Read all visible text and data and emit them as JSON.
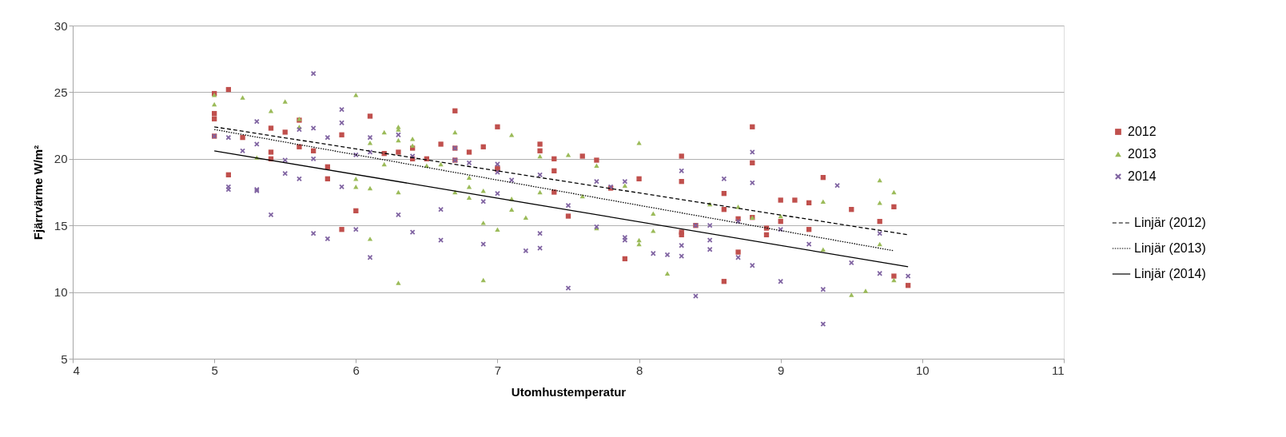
{
  "chart_data": {
    "type": "scatter",
    "xlabel": "Utomhustemperatur",
    "ylabel": "Fjärrvärme W/m²",
    "xlim": [
      4,
      11
    ],
    "xticks": [
      4,
      5,
      6,
      7,
      8,
      9,
      10,
      11
    ],
    "ylim": [
      5,
      30
    ],
    "yticks": [
      5,
      10,
      15,
      20,
      25,
      30
    ],
    "grid": "y",
    "legend": "right",
    "series": [
      {
        "name": "2012",
        "color": "#c0504d",
        "marker": "square",
        "x": [
          5.0,
          5.0,
          5.0,
          5.0,
          5.1,
          5.1,
          5.2,
          5.4,
          5.4,
          5.4,
          5.5,
          5.6,
          5.6,
          5.7,
          5.8,
          5.8,
          5.9,
          5.9,
          6.0,
          6.1,
          6.2,
          6.3,
          6.4,
          6.4,
          6.5,
          6.6,
          6.7,
          6.7,
          6.7,
          6.8,
          6.9,
          7.0,
          7.0,
          7.0,
          7.3,
          7.3,
          7.4,
          7.4,
          7.4,
          7.5,
          7.6,
          7.7,
          7.8,
          7.9,
          8.0,
          8.3,
          8.3,
          8.3,
          8.3,
          8.4,
          8.6,
          8.6,
          8.6,
          8.7,
          8.7,
          8.8,
          8.8,
          8.8,
          8.9,
          8.9,
          9.0,
          9.0,
          9.1,
          9.2,
          9.2,
          9.3,
          9.5,
          9.7,
          9.8,
          9.8,
          9.9
        ],
        "values": [
          24.9,
          23.4,
          23.0,
          21.7,
          25.2,
          18.8,
          21.6,
          22.3,
          20.5,
          20.0,
          22.0,
          22.9,
          20.9,
          20.6,
          19.4,
          18.5,
          21.8,
          14.7,
          16.1,
          23.2,
          20.4,
          20.5,
          20.8,
          20.0,
          20.0,
          21.1,
          23.6,
          20.8,
          19.9,
          20.5,
          20.9,
          22.4,
          19.3,
          19.2,
          21.1,
          20.6,
          20.0,
          19.1,
          17.5,
          15.7,
          20.2,
          19.9,
          17.8,
          12.5,
          18.5,
          20.2,
          18.3,
          14.5,
          14.3,
          15.0,
          17.4,
          16.2,
          10.8,
          15.5,
          13.0,
          22.4,
          19.7,
          15.6,
          14.8,
          14.3,
          16.9,
          15.3,
          16.9,
          16.7,
          14.7,
          18.6,
          16.2,
          15.3,
          16.4,
          11.2,
          10.5
        ]
      },
      {
        "name": "2013",
        "color": "#9bbb59",
        "marker": "triangle",
        "x": [
          5.0,
          5.0,
          5.2,
          5.3,
          5.4,
          5.5,
          5.6,
          5.6,
          6.0,
          6.0,
          6.0,
          6.1,
          6.1,
          6.1,
          6.2,
          6.2,
          6.3,
          6.3,
          6.3,
          6.3,
          6.3,
          6.4,
          6.4,
          6.5,
          6.6,
          6.7,
          6.7,
          6.8,
          6.8,
          6.8,
          6.9,
          6.9,
          6.9,
          7.0,
          7.1,
          7.1,
          7.1,
          7.2,
          7.3,
          7.3,
          7.5,
          7.6,
          7.7,
          7.7,
          7.9,
          8.0,
          8.0,
          8.0,
          8.1,
          8.1,
          8.2,
          8.5,
          8.7,
          8.8,
          9.0,
          9.3,
          9.3,
          9.5,
          9.6,
          9.7,
          9.7,
          9.7,
          9.8,
          9.8
        ],
        "values": [
          24.8,
          24.1,
          24.6,
          20.1,
          23.6,
          24.3,
          23.0,
          22.4,
          24.8,
          18.5,
          17.9,
          21.2,
          17.8,
          14.0,
          22.0,
          19.6,
          22.4,
          22.2,
          21.4,
          17.5,
          10.7,
          21.5,
          21.0,
          19.5,
          19.6,
          22.0,
          17.5,
          18.6,
          17.9,
          17.1,
          17.6,
          15.2,
          10.9,
          14.7,
          21.8,
          17.0,
          16.2,
          15.6,
          20.2,
          17.5,
          20.3,
          17.2,
          19.5,
          14.8,
          18.0,
          21.2,
          13.9,
          13.6,
          15.9,
          14.6,
          11.4,
          16.6,
          16.4,
          15.6,
          15.7,
          16.8,
          13.2,
          9.8,
          10.1,
          18.4,
          16.7,
          13.6,
          17.5,
          10.9
        ]
      },
      {
        "name": "2014",
        "color": "#8064a2",
        "marker": "cross",
        "x": [
          5.0,
          5.1,
          5.1,
          5.1,
          5.2,
          5.3,
          5.3,
          5.3,
          5.3,
          5.4,
          5.5,
          5.5,
          5.6,
          5.6,
          5.7,
          5.7,
          5.7,
          5.7,
          5.8,
          5.8,
          5.9,
          5.9,
          5.9,
          6.0,
          6.0,
          6.1,
          6.1,
          6.1,
          6.3,
          6.3,
          6.4,
          6.4,
          6.6,
          6.6,
          6.7,
          6.7,
          6.8,
          6.9,
          6.9,
          7.0,
          7.0,
          7.0,
          7.1,
          7.2,
          7.3,
          7.3,
          7.3,
          7.5,
          7.5,
          7.7,
          7.7,
          7.8,
          7.9,
          7.9,
          7.9,
          8.1,
          8.2,
          8.3,
          8.3,
          8.3,
          8.4,
          8.4,
          8.5,
          8.5,
          8.5,
          8.6,
          8.7,
          8.7,
          8.8,
          8.8,
          8.8,
          9.0,
          9.0,
          9.2,
          9.3,
          9.3,
          9.4,
          9.5,
          9.7,
          9.7,
          9.9
        ],
        "values": [
          21.7,
          21.6,
          17.9,
          17.7,
          20.6,
          22.8,
          21.1,
          17.7,
          17.6,
          15.8,
          19.9,
          18.9,
          22.2,
          18.5,
          26.4,
          22.3,
          20.0,
          14.4,
          21.6,
          14.0,
          23.7,
          22.7,
          17.9,
          20.3,
          14.7,
          21.6,
          20.5,
          12.6,
          21.8,
          15.8,
          20.2,
          14.5,
          16.2,
          13.9,
          20.8,
          19.9,
          19.7,
          16.8,
          13.6,
          19.6,
          19.0,
          17.4,
          18.4,
          13.1,
          18.8,
          14.4,
          13.3,
          16.5,
          10.3,
          18.3,
          14.9,
          17.9,
          18.3,
          14.1,
          13.9,
          12.9,
          12.8,
          19.1,
          13.5,
          12.7,
          15.0,
          9.7,
          15.0,
          13.9,
          13.2,
          18.5,
          15.3,
          12.6,
          20.5,
          18.2,
          12.0,
          14.7,
          10.8,
          13.6,
          10.2,
          7.6,
          18.0,
          12.2,
          14.4,
          11.4,
          11.2
        ]
      },
      {
        "name": "Linjär (2012)",
        "type": "line",
        "color": "#000000",
        "line_style": "dashed",
        "x": [
          5.0,
          9.9
        ],
        "values": [
          22.4,
          14.3
        ]
      },
      {
        "name": "Linjär (2013)",
        "type": "line",
        "color": "#000000",
        "line_style": "dotted",
        "x": [
          5.0,
          9.8
        ],
        "values": [
          22.2,
          13.1
        ]
      },
      {
        "name": "Linjär (2014)",
        "type": "line",
        "color": "#000000",
        "line_style": "solid",
        "x": [
          5.0,
          9.9
        ],
        "values": [
          20.6,
          11.9
        ]
      }
    ]
  }
}
